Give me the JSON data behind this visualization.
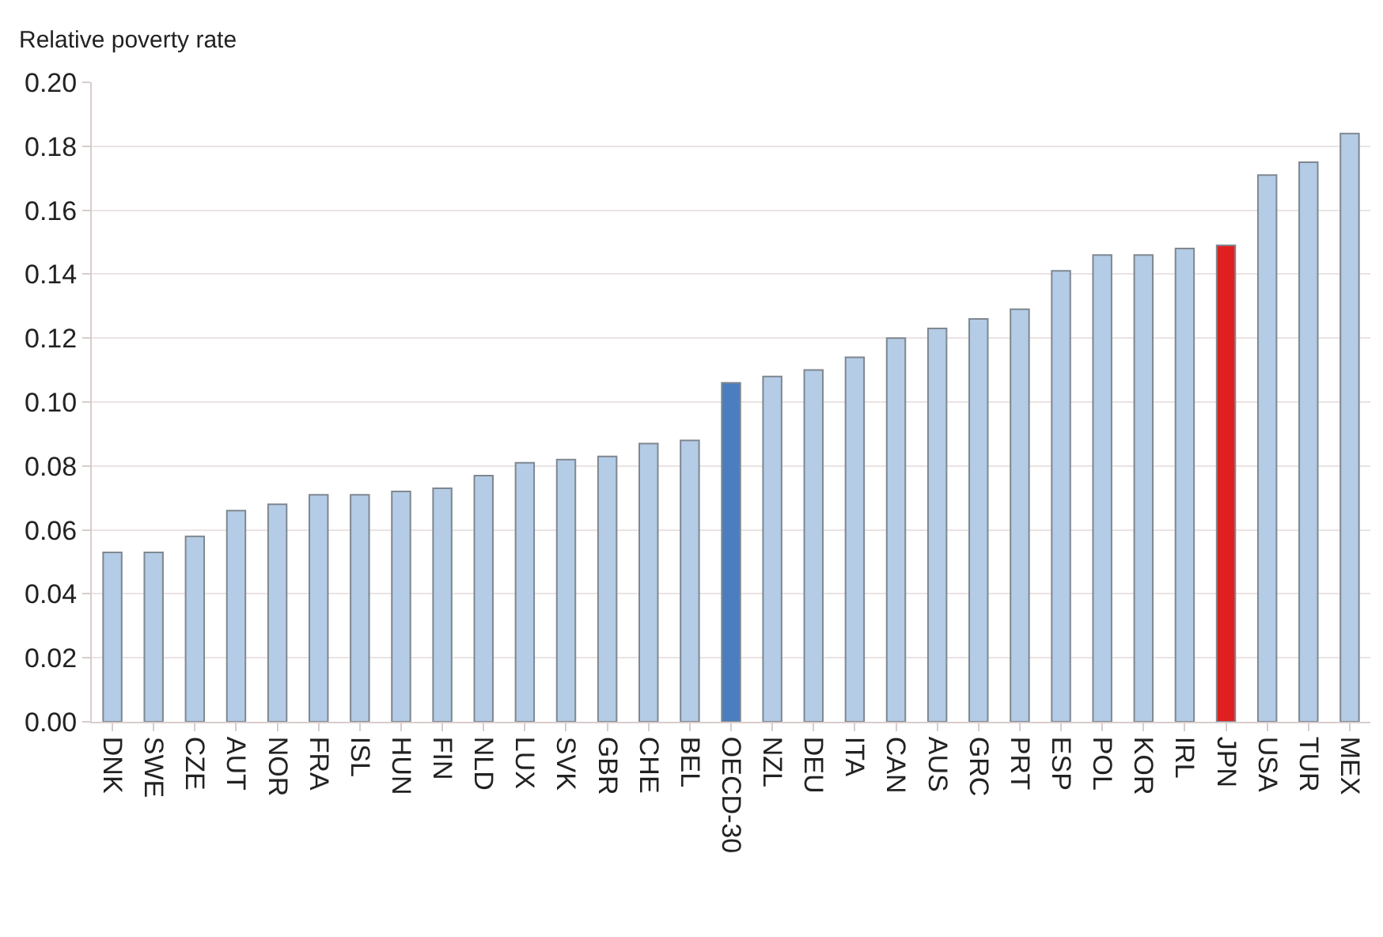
{
  "chart_data": {
    "type": "bar",
    "ylabel": "Relative poverty rate",
    "categories": [
      "DNK",
      "SWE",
      "CZE",
      "AUT",
      "NOR",
      "FRA",
      "ISL",
      "HUN",
      "FIN",
      "NLD",
      "LUX",
      "SVK",
      "GBR",
      "CHE",
      "BEL",
      "OECD-30",
      "NZL",
      "DEU",
      "ITA",
      "CAN",
      "AUS",
      "GRC",
      "PRT",
      "ESP",
      "POL",
      "KOR",
      "IRL",
      "JPN",
      "USA",
      "TUR",
      "MEX"
    ],
    "values": [
      0.053,
      0.053,
      0.058,
      0.066,
      0.068,
      0.071,
      0.071,
      0.072,
      0.073,
      0.077,
      0.081,
      0.082,
      0.083,
      0.087,
      0.088,
      0.106,
      0.108,
      0.11,
      0.114,
      0.12,
      0.123,
      0.126,
      0.129,
      0.141,
      0.146,
      0.146,
      0.148,
      0.149,
      0.171,
      0.175,
      0.184
    ],
    "colors": [
      "#b4cce6",
      "#b4cce6",
      "#b4cce6",
      "#b4cce6",
      "#b4cce6",
      "#b4cce6",
      "#b4cce6",
      "#b4cce6",
      "#b4cce6",
      "#b4cce6",
      "#b4cce6",
      "#b4cce6",
      "#b4cce6",
      "#b4cce6",
      "#b4cce6",
      "#4a7ebf",
      "#b4cce6",
      "#b4cce6",
      "#b4cce6",
      "#b4cce6",
      "#b4cce6",
      "#b4cce6",
      "#b4cce6",
      "#b4cce6",
      "#b4cce6",
      "#b4cce6",
      "#b4cce6",
      "#e02020",
      "#b4cce6",
      "#b4cce6",
      "#b4cce6"
    ],
    "ylim": [
      0,
      0.2
    ],
    "yticks": [
      {
        "value": 0,
        "label": "0.00"
      },
      {
        "value": 0.02,
        "label": "0.02"
      },
      {
        "value": 0.04,
        "label": "0.04"
      },
      {
        "value": 0.06,
        "label": "0.06"
      },
      {
        "value": 0.08,
        "label": "0.08"
      },
      {
        "value": 0.1,
        "label": "0.10"
      },
      {
        "value": 0.12,
        "label": "0.12"
      },
      {
        "value": 0.14,
        "label": "0.14"
      },
      {
        "value": 0.16,
        "label": "0.16"
      },
      {
        "value": 0.18,
        "label": "0.18"
      },
      {
        "value": 0.2,
        "label": "0.20"
      }
    ],
    "grid": "y"
  }
}
